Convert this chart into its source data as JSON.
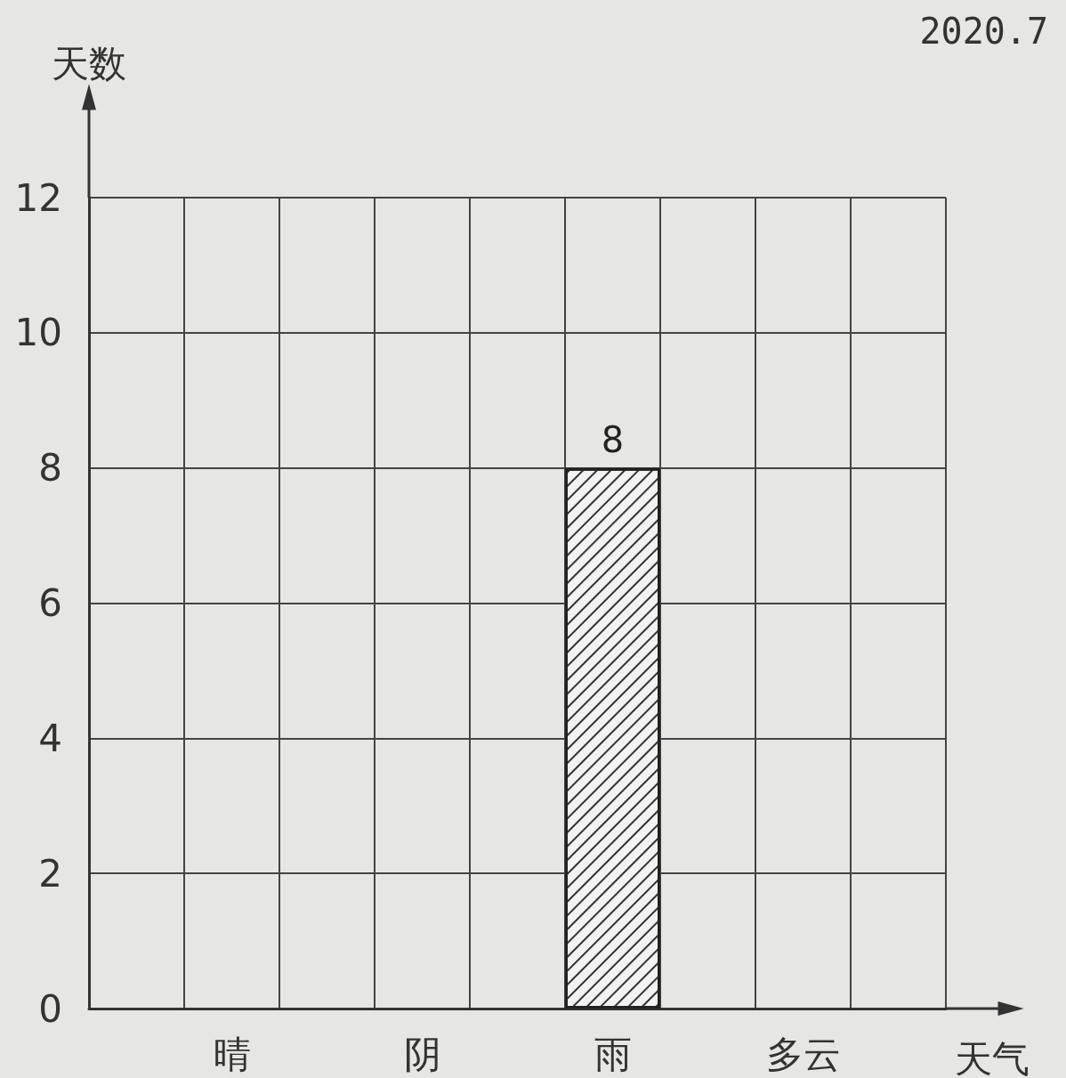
{
  "chart_data": {
    "type": "bar",
    "xlabel": "天气",
    "ylabel": "天数",
    "annotations": [
      "2020.7"
    ],
    "categories": [
      null,
      "晴",
      null,
      "阴",
      null,
      "雨",
      null,
      "多云",
      null
    ],
    "values": [
      null,
      null,
      null,
      null,
      null,
      8,
      null,
      null,
      null
    ],
    "color": "#f2f2f2",
    "ylim": [
      0,
      12
    ],
    "yticks": [
      0,
      2,
      4,
      6,
      8,
      10,
      12
    ],
    "grid": true,
    "data_labels": true
  }
}
